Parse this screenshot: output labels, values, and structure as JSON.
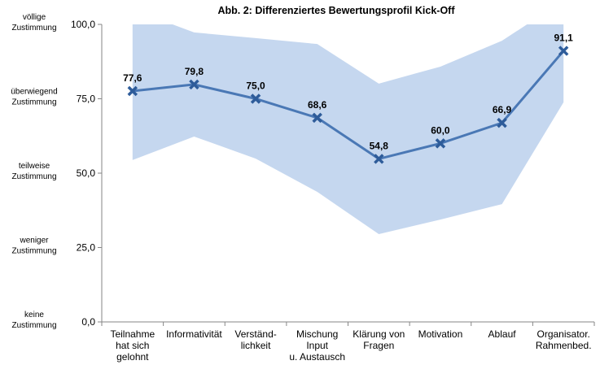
{
  "chart_data": {
    "type": "line",
    "title": "Abb. 2: Differenziertes  Bewertungsprofil Kick-Off",
    "categories": [
      [
        "Teilnahme",
        "hat sich",
        "gelohnt"
      ],
      [
        "Informativität"
      ],
      [
        "Verständ-",
        "lichkeit"
      ],
      [
        "Mischung",
        "Input",
        "u. Austausch"
      ],
      [
        "Klärung von",
        "Fragen"
      ],
      [
        "Motivation"
      ],
      [
        "Ablauf"
      ],
      [
        "Organisator.",
        "Rahmenbed."
      ]
    ],
    "values": [
      77.6,
      79.8,
      75.0,
      68.6,
      54.8,
      60.0,
      66.9,
      91.1
    ],
    "data_labels": [
      "77,6",
      "79,8",
      "75,0",
      "68,6",
      "54,8",
      "60,0",
      "66,9",
      "91,1"
    ],
    "band_upper": [
      105,
      97.3,
      95.4,
      93.4,
      80.1,
      85.8,
      94.5,
      108
    ],
    "band_lower": [
      54.4,
      62.3,
      54.9,
      43.7,
      29.5,
      34.4,
      39.6,
      73.8
    ],
    "ylim": [
      0,
      100
    ],
    "yticks": [
      0,
      25,
      50,
      75,
      100
    ],
    "ytick_labels": [
      "0,0",
      "25,0",
      "50,0",
      "75,0",
      "100,0"
    ],
    "y_category_labels": [
      [
        "keine",
        "Zustimmung"
      ],
      [
        "weniger",
        "Zustimmung"
      ],
      [
        "teilweise",
        "Zustimmung"
      ],
      [
        "überwiegend",
        "Zustimmung"
      ],
      [
        "völlige",
        "Zustimmung"
      ]
    ],
    "grid": false,
    "legend": "none",
    "colors": {
      "line": "#4a78b5",
      "band": "#c5d7ef",
      "axis": "#868686"
    }
  }
}
